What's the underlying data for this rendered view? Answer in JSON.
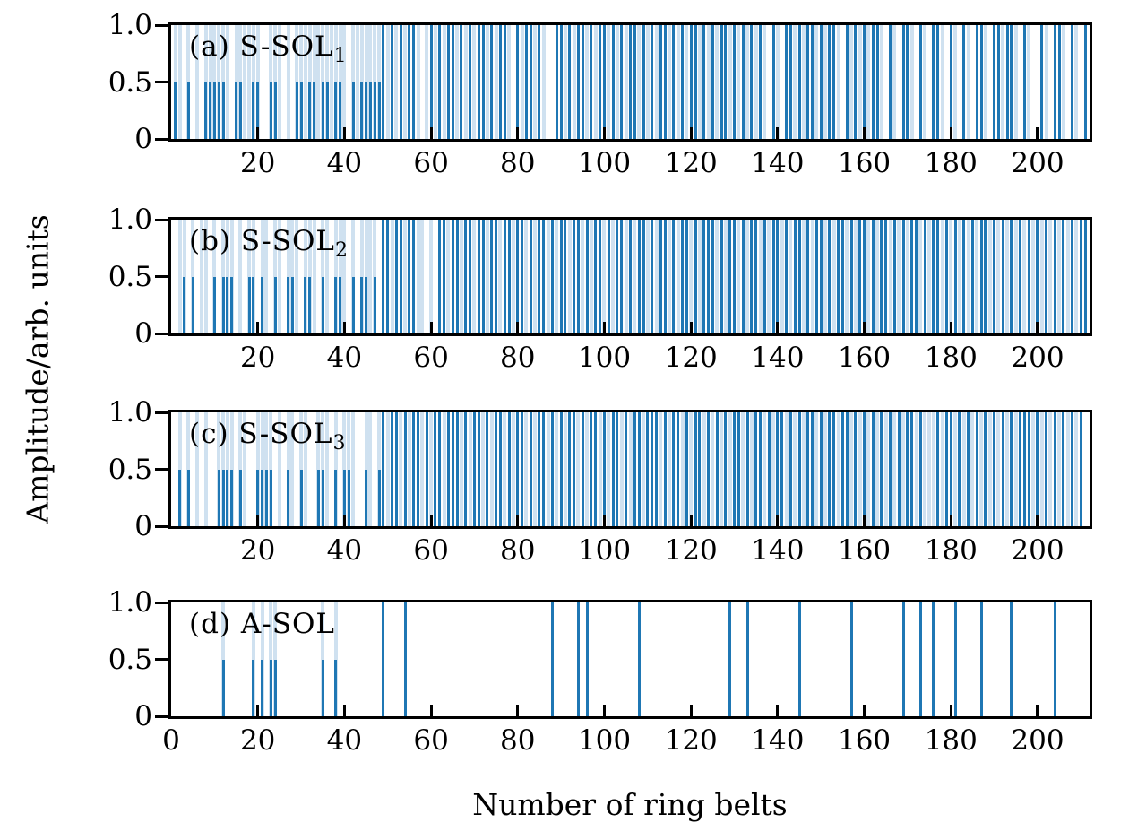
{
  "figure": {
    "xlabel": "Number of ring belts",
    "ylabel": "Amplitude/arb. units",
    "colors": {
      "bar_dark": "#1f77b4",
      "bar_pale": "#cfe1f0",
      "axis": "#000000"
    }
  },
  "chart_data": [
    {
      "type": "bar",
      "label": "(a) S-SOL",
      "label_sub": "1",
      "xlim": [
        0,
        212
      ],
      "ylim": [
        0,
        1.0
      ],
      "xticks": [
        20,
        40,
        60,
        80,
        100,
        120,
        140,
        160,
        180,
        200
      ],
      "ytick_labels": [
        "1.0",
        "0.5",
        "0"
      ],
      "ytick_values": [
        1,
        0.5,
        0
      ],
      "amplitude_half": 0.5,
      "amplitude_full": 1.0,
      "bars": {
        "half": [
          1,
          4,
          8,
          9,
          10,
          11,
          12,
          15,
          16,
          19,
          20,
          23,
          24,
          29,
          30,
          32,
          33,
          35,
          36,
          38,
          39,
          42,
          44,
          45,
          46,
          47,
          48
        ],
        "full": [
          49,
          51,
          53,
          55,
          56,
          60,
          62,
          64,
          65,
          67,
          69,
          71,
          72,
          74,
          76,
          77,
          80,
          82,
          83,
          85,
          89,
          90,
          92,
          94,
          95,
          97,
          99,
          100,
          102,
          104,
          106,
          107,
          109,
          111,
          113,
          114,
          116,
          118,
          120,
          121,
          123,
          125,
          127,
          128,
          130,
          132,
          134,
          136,
          139,
          142,
          143,
          145,
          147,
          148,
          150,
          152,
          153,
          156,
          158,
          160,
          162,
          163,
          166,
          169,
          170,
          173,
          176,
          177,
          180,
          183,
          186,
          187,
          190,
          191,
          193,
          194,
          197,
          201,
          204,
          205,
          208,
          211
        ],
        "pale": [
          2,
          6,
          13,
          17,
          18,
          25,
          27,
          31,
          34,
          37,
          40,
          43,
          50,
          52,
          54,
          57,
          59,
          61,
          63,
          66,
          68,
          70,
          73,
          75,
          78,
          81,
          84,
          86,
          91,
          93,
          96,
          98,
          101,
          103,
          105,
          108,
          110,
          112,
          115,
          117,
          119,
          122,
          124,
          126,
          129,
          131,
          133,
          135,
          137,
          140,
          144,
          146,
          149,
          151,
          154,
          157,
          159,
          161,
          164,
          167,
          171,
          174,
          178,
          181,
          184,
          188,
          192,
          195,
          198,
          202,
          206,
          209
        ]
      }
    },
    {
      "type": "bar",
      "label": "(b) S-SOL",
      "label_sub": "2",
      "xlim": [
        0,
        212
      ],
      "ylim": [
        0,
        1.0
      ],
      "xticks": [
        20,
        40,
        60,
        80,
        100,
        120,
        140,
        160,
        180,
        200
      ],
      "ytick_labels": [
        "1.0",
        "0.5",
        "0"
      ],
      "ytick_values": [
        1,
        0.5,
        0
      ],
      "amplitude_half": 0.5,
      "amplitude_full": 1.0,
      "bars": {
        "half": [
          3,
          5,
          10,
          12,
          13,
          14,
          18,
          19,
          21,
          24,
          27,
          28,
          31,
          32,
          35,
          38,
          39,
          42,
          44,
          45,
          47
        ],
        "full": [
          49,
          50,
          52,
          53,
          55,
          56,
          62,
          63,
          65,
          66,
          68,
          69,
          71,
          72,
          74,
          75,
          77,
          78,
          80,
          81,
          83,
          85,
          86,
          88,
          90,
          91,
          93,
          94,
          96,
          98,
          99,
          101,
          103,
          104,
          106,
          108,
          109,
          111,
          113,
          114,
          116,
          118,
          119,
          121,
          123,
          124,
          125,
          127,
          129,
          130,
          132,
          134,
          135,
          137,
          139,
          140,
          142,
          144,
          145,
          147,
          149,
          150,
          152,
          154,
          155,
          157,
          159,
          160,
          162,
          164,
          165,
          167,
          169,
          171,
          172,
          174,
          176,
          177,
          179,
          181,
          183,
          185,
          187,
          188,
          190,
          192,
          194,
          196,
          198,
          200,
          202,
          204,
          206,
          208,
          210,
          211
        ],
        "pale": [
          2,
          7,
          8,
          16,
          22,
          25,
          29,
          33,
          36,
          40,
          46,
          51,
          54,
          57,
          58,
          60,
          64,
          67,
          70,
          73,
          76,
          79,
          82,
          84,
          87,
          89,
          92,
          95,
          97,
          100,
          102,
          105,
          107,
          110,
          112,
          115,
          117,
          120,
          122,
          126,
          128,
          131,
          133,
          136,
          138,
          141,
          143,
          146,
          148,
          151,
          153,
          156,
          158,
          161,
          163,
          166,
          168,
          170,
          173,
          175,
          178,
          180,
          182,
          184,
          186,
          189,
          191,
          193,
          195,
          197,
          199,
          201,
          203,
          205,
          207,
          209
        ]
      }
    },
    {
      "type": "bar",
      "label": "(c) S-SOL",
      "label_sub": "3",
      "xlim": [
        0,
        212
      ],
      "ylim": [
        0,
        1.0
      ],
      "xticks": [
        20,
        40,
        60,
        80,
        100,
        120,
        140,
        160,
        180,
        200
      ],
      "ytick_labels": [
        "1.0",
        "0.5",
        "0"
      ],
      "ytick_values": [
        1,
        0.5,
        0
      ],
      "amplitude_half": 0.5,
      "amplitude_full": 1.0,
      "bars": {
        "half": [
          2,
          4,
          11,
          12,
          13,
          14,
          16,
          20,
          21,
          22,
          23,
          27,
          30,
          34,
          35,
          38,
          40,
          41,
          45,
          48
        ],
        "full": [
          49,
          51,
          52,
          54,
          56,
          57,
          59,
          61,
          62,
          64,
          65,
          66,
          68,
          70,
          71,
          73,
          75,
          76,
          78,
          80,
          81,
          83,
          85,
          86,
          88,
          90,
          92,
          93,
          95,
          97,
          98,
          100,
          102,
          103,
          105,
          107,
          108,
          110,
          111,
          112,
          114,
          116,
          117,
          119,
          121,
          122,
          124,
          126,
          128,
          130,
          131,
          133,
          135,
          136,
          138,
          140,
          141,
          143,
          145,
          147,
          148,
          150,
          152,
          153,
          155,
          156,
          158,
          160,
          162,
          164,
          166,
          168,
          170,
          171,
          173,
          177,
          179,
          180,
          182,
          184,
          186,
          188,
          190,
          192,
          194,
          196,
          197,
          198,
          200,
          202,
          204,
          206,
          208,
          210
        ],
        "pale": [
          6,
          8,
          17,
          25,
          28,
          31,
          36,
          42,
          46,
          50,
          53,
          55,
          58,
          60,
          63,
          67,
          69,
          72,
          74,
          77,
          79,
          82,
          84,
          87,
          89,
          91,
          94,
          96,
          99,
          101,
          104,
          106,
          109,
          113,
          115,
          118,
          120,
          123,
          125,
          127,
          129,
          132,
          134,
          137,
          139,
          142,
          144,
          146,
          149,
          151,
          154,
          157,
          159,
          161,
          163,
          165,
          167,
          169,
          172,
          174,
          175,
          176,
          178,
          181,
          183,
          185,
          187,
          189,
          191,
          193,
          195,
          199,
          201,
          203,
          205,
          207,
          209
        ]
      }
    },
    {
      "type": "bar",
      "label": "(d) A-SOL",
      "label_sub": "",
      "xlim": [
        0,
        212
      ],
      "ylim": [
        0,
        1.0
      ],
      "xticks": [
        0,
        20,
        40,
        60,
        80,
        100,
        120,
        140,
        160,
        180,
        200
      ],
      "ytick_labels": [
        "1.0",
        "0.5",
        "0"
      ],
      "ytick_values": [
        1,
        0.5,
        0
      ],
      "amplitude_half": 0.5,
      "amplitude_full": 1.0,
      "bars": {
        "half": [
          12,
          19,
          21,
          23,
          24,
          35,
          38
        ],
        "full": [
          49,
          54,
          88,
          94,
          96,
          108,
          129,
          133,
          145,
          157,
          169,
          173,
          176,
          181,
          187,
          194,
          204
        ],
        "pale": []
      }
    }
  ]
}
